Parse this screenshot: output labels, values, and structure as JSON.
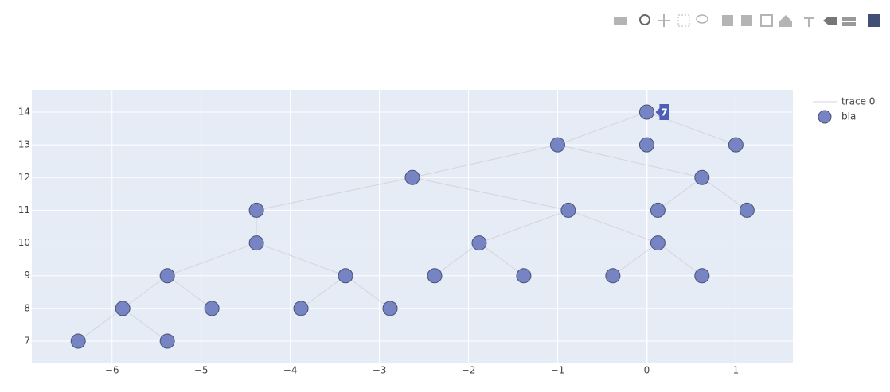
{
  "chart_data": {
    "type": "scatter",
    "xlim": [
      -6.9,
      1.64
    ],
    "ylim": [
      6.32,
      14.68
    ],
    "xticks": [
      {
        "value": -6,
        "label": "−6"
      },
      {
        "value": -5,
        "label": "−5"
      },
      {
        "value": -4,
        "label": "−4"
      },
      {
        "value": -3,
        "label": "−3"
      },
      {
        "value": -2,
        "label": "−2"
      },
      {
        "value": -1,
        "label": "−1"
      },
      0,
      1
    ],
    "yticks": [
      7,
      8,
      9,
      10,
      11,
      12,
      13,
      14
    ],
    "grid": true,
    "legend": "right",
    "annotation": "7",
    "series": [
      {
        "name": "trace 0",
        "mode": "lines",
        "color": "#d4d4dc",
        "x": [
          0,
          -1,
          null,
          0,
          1,
          null,
          -1,
          0.62,
          null,
          -1,
          -2.63,
          null,
          -2.63,
          -4.38,
          null,
          -2.63,
          -0.88,
          null,
          0.62,
          0.125,
          null,
          0.62,
          1.125,
          null,
          -4.38,
          -4.38,
          null,
          -0.88,
          -1.88,
          null,
          -0.88,
          0.125,
          null,
          -4.38,
          -5.38,
          null,
          -4.38,
          -3.38,
          null,
          -1.88,
          -2.38,
          null,
          -1.88,
          -1.38,
          null,
          0.125,
          -0.38,
          null,
          0.125,
          0.62,
          null,
          -5.38,
          -5.88,
          null,
          -5.38,
          -4.88,
          null,
          -3.38,
          -3.88,
          null,
          -3.38,
          -2.88,
          null,
          -5.88,
          -6.38,
          null,
          -5.88,
          -5.38,
          null
        ],
        "values": [
          14,
          13,
          null,
          14,
          13,
          null,
          13,
          12,
          null,
          13,
          12,
          null,
          12,
          11,
          null,
          12,
          11,
          null,
          12,
          11,
          null,
          12,
          11,
          null,
          11,
          10,
          null,
          11,
          10,
          null,
          11,
          10,
          null,
          10,
          9,
          null,
          10,
          9,
          null,
          10,
          9,
          null,
          10,
          9,
          null,
          10,
          9,
          null,
          10,
          9,
          null,
          9,
          8,
          null,
          9,
          8,
          null,
          9,
          8,
          null,
          9,
          8,
          null,
          8,
          7,
          null,
          8,
          7,
          null
        ]
      },
      {
        "name": "bla",
        "mode": "markers",
        "color": "#7784c4",
        "x": [
          0,
          -1,
          0,
          1,
          -2.63,
          0.62,
          -4.38,
          -0.88,
          0.125,
          1.125,
          -4.38,
          -1.88,
          0.125,
          -5.38,
          -3.38,
          -2.38,
          -1.38,
          -0.38,
          0.62,
          -5.88,
          -4.88,
          -3.88,
          -2.88,
          -6.38,
          -5.38
        ],
        "values": [
          14,
          13,
          13,
          13,
          12,
          12,
          11,
          11,
          11,
          11,
          10,
          10,
          10,
          9,
          9,
          9,
          9,
          9,
          9,
          8,
          8,
          8,
          8,
          7,
          7
        ]
      }
    ]
  }
}
